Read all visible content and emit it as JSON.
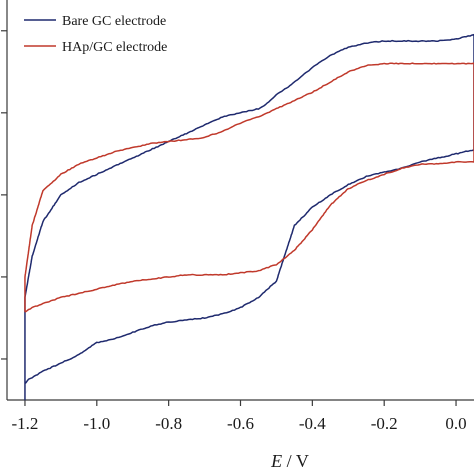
{
  "chart_data": {
    "type": "line",
    "xlabel_symbol": "E",
    "xlabel_unit": " / V",
    "xlim": [
      -1.25,
      0.05
    ],
    "ylim": [
      -1.0,
      0.95
    ],
    "grid": false,
    "legend_position": "top-left",
    "x_ticks": [
      -1.2,
      -1.0,
      -0.8,
      -0.6,
      -0.4,
      -0.2,
      0.0
    ],
    "x_tick_labels": [
      "-1.2",
      "-1.0",
      "-0.8",
      "-0.6",
      "-0.4",
      "-0.2",
      "0.0"
    ],
    "y_ticks": [
      -0.8,
      -0.4,
      0.0,
      0.4,
      0.8
    ],
    "series": [
      {
        "name": "Bare GC electrode",
        "color": "#1f2a6e",
        "x": [
          -1.2,
          -1.2,
          -1.19,
          -1.18,
          -1.15,
          -1.1,
          -1.05,
          -1.0,
          -0.95,
          -0.9,
          -0.85,
          -0.8,
          -0.75,
          -0.7,
          -0.65,
          -0.6,
          -0.55,
          -0.5,
          -0.45,
          -0.4,
          -0.35,
          -0.3,
          -0.25,
          -0.2,
          -0.15,
          -0.1,
          -0.05,
          0.0,
          0.05,
          0.05,
          0.0,
          -0.05,
          -0.1,
          -0.15,
          -0.2,
          -0.25,
          -0.3,
          -0.35,
          -0.4,
          -0.45,
          -0.48,
          -0.5,
          -0.53,
          -0.55,
          -0.6,
          -0.65,
          -0.7,
          -0.75,
          -0.8,
          -0.85,
          -0.9,
          -0.95,
          -1.0,
          -1.05,
          -1.1,
          -1.15,
          -1.18,
          -1.2,
          -1.2
        ],
        "y": [
          -1.0,
          -0.92,
          -0.9,
          -0.89,
          -0.86,
          -0.82,
          -0.78,
          -0.72,
          -0.7,
          -0.67,
          -0.64,
          -0.62,
          -0.61,
          -0.6,
          -0.58,
          -0.55,
          -0.5,
          -0.42,
          -0.15,
          -0.06,
          0.0,
          0.05,
          0.09,
          0.11,
          0.13,
          0.16,
          0.18,
          0.2,
          0.22,
          0.78,
          0.76,
          0.75,
          0.75,
          0.75,
          0.75,
          0.74,
          0.72,
          0.68,
          0.62,
          0.55,
          0.51,
          0.49,
          0.44,
          0.42,
          0.4,
          0.38,
          0.34,
          0.3,
          0.26,
          0.22,
          0.18,
          0.14,
          0.1,
          0.06,
          0.0,
          -0.13,
          -0.3,
          -0.5,
          -1.0
        ]
      },
      {
        "name": "HAp/GC electrode",
        "color": "#c0392b",
        "x": [
          -1.2,
          -1.18,
          -1.15,
          -1.1,
          -1.05,
          -1.0,
          -0.95,
          -0.9,
          -0.85,
          -0.8,
          -0.75,
          -0.7,
          -0.65,
          -0.6,
          -0.55,
          -0.5,
          -0.45,
          -0.4,
          -0.35,
          -0.3,
          -0.25,
          -0.2,
          -0.15,
          -0.1,
          -0.05,
          0.0,
          0.05,
          0.05,
          0.0,
          -0.05,
          -0.1,
          -0.15,
          -0.2,
          -0.25,
          -0.3,
          -0.35,
          -0.4,
          -0.45,
          -0.5,
          -0.55,
          -0.6,
          -0.65,
          -0.7,
          -0.75,
          -0.8,
          -0.85,
          -0.9,
          -0.95,
          -1.0,
          -1.05,
          -1.1,
          -1.15,
          -1.18,
          -1.2,
          -1.2
        ],
        "y": [
          -0.57,
          -0.55,
          -0.53,
          -0.5,
          -0.48,
          -0.46,
          -0.44,
          -0.42,
          -0.41,
          -0.4,
          -0.39,
          -0.39,
          -0.39,
          -0.38,
          -0.37,
          -0.34,
          -0.27,
          -0.17,
          -0.05,
          0.03,
          0.07,
          0.1,
          0.13,
          0.15,
          0.15,
          0.16,
          0.16,
          0.64,
          0.64,
          0.64,
          0.64,
          0.64,
          0.64,
          0.63,
          0.6,
          0.55,
          0.5,
          0.46,
          0.42,
          0.38,
          0.35,
          0.31,
          0.28,
          0.27,
          0.26,
          0.25,
          0.23,
          0.21,
          0.18,
          0.15,
          0.1,
          0.02,
          -0.15,
          -0.4,
          -0.57
        ]
      }
    ]
  }
}
